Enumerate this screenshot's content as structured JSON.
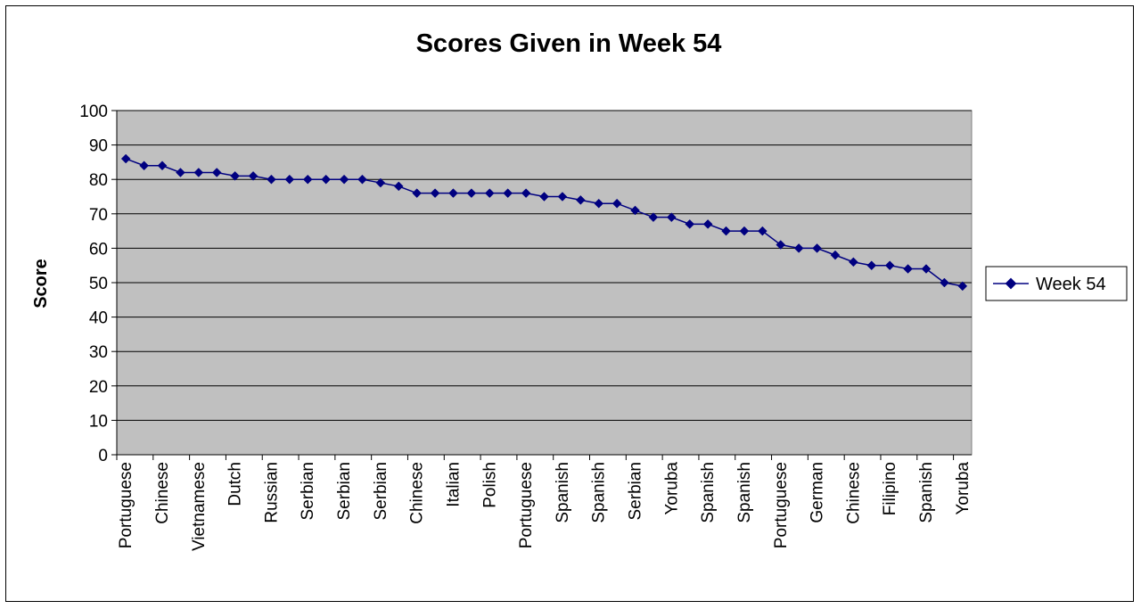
{
  "chart_data": {
    "type": "line",
    "title": "Scores Given in Week 54",
    "xlabel": "",
    "ylabel": "Score",
    "ylim": [
      0,
      100
    ],
    "yticks": [
      0,
      10,
      20,
      30,
      40,
      50,
      60,
      70,
      80,
      90,
      100
    ],
    "grid": true,
    "legend": "right",
    "series": [
      {
        "name": "Week 54",
        "color": "#000080",
        "values": [
          86,
          84,
          84,
          82,
          82,
          82,
          81,
          81,
          80,
          80,
          80,
          80,
          80,
          80,
          79,
          78,
          76,
          76,
          76,
          76,
          76,
          76,
          76,
          75,
          75,
          74,
          73,
          73,
          71,
          69,
          69,
          67,
          67,
          65,
          65,
          65,
          61,
          60,
          60,
          58,
          56,
          55,
          55,
          54,
          54,
          50,
          49
        ]
      }
    ],
    "category_labels": [
      "Portuguese",
      "Chinese",
      "Vietnamese",
      "Dutch",
      "Russian",
      "Serbian",
      "Serbian",
      "Serbian",
      "Chinese",
      "Italian",
      "Polish",
      "Portuguese",
      "Spanish",
      "Spanish",
      "Serbian",
      "Yoruba",
      "Spanish",
      "Spanish",
      "Portuguese",
      "German",
      "Chinese",
      "Filipino",
      "Spanish",
      "Yoruba"
    ],
    "plot_background": "#c0c0c0"
  }
}
